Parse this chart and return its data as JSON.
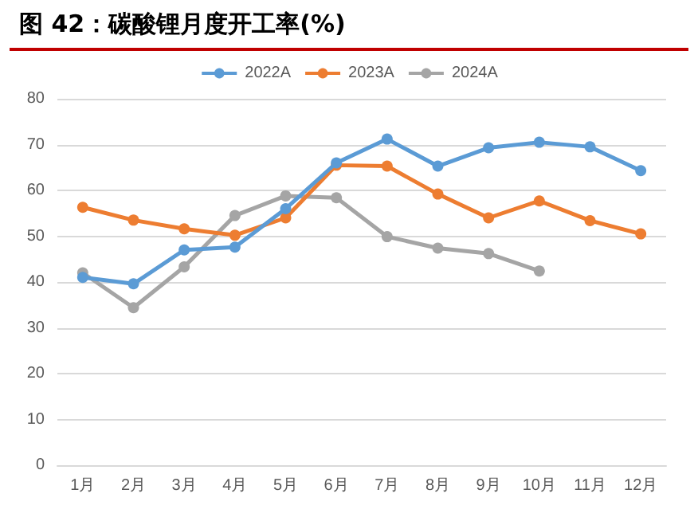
{
  "chart_data": {
    "type": "line",
    "title": "图 42：碳酸锂月度开工率(%)",
    "categories": [
      "1月",
      "2月",
      "3月",
      "4月",
      "5月",
      "6月",
      "7月",
      "8月",
      "9月",
      "10月",
      "11月",
      "12月"
    ],
    "series": [
      {
        "name": "2022A",
        "color": "#5b9bd5",
        "values": [
          41,
          39.6,
          47,
          47.6,
          56,
          66,
          71.2,
          65.3,
          69.3,
          70.5,
          69.5,
          64.3
        ]
      },
      {
        "name": "2023A",
        "color": "#ed7d31",
        "values": [
          56.3,
          53.5,
          51.6,
          50.2,
          54,
          65.5,
          65.3,
          59.2,
          54,
          57.7,
          53.4,
          50.5
        ]
      },
      {
        "name": "2024A",
        "color": "#a5a5a5",
        "values": [
          42,
          34.4,
          43.3,
          54.5,
          58.8,
          58.4,
          49.9,
          47.4,
          46.2,
          42.4,
          null,
          null
        ]
      }
    ],
    "ylim": [
      0,
      80
    ],
    "yticks": [
      0,
      10,
      20,
      30,
      40,
      50,
      60,
      70,
      80
    ],
    "grid": "y",
    "legend": "top",
    "marker": "circle"
  }
}
